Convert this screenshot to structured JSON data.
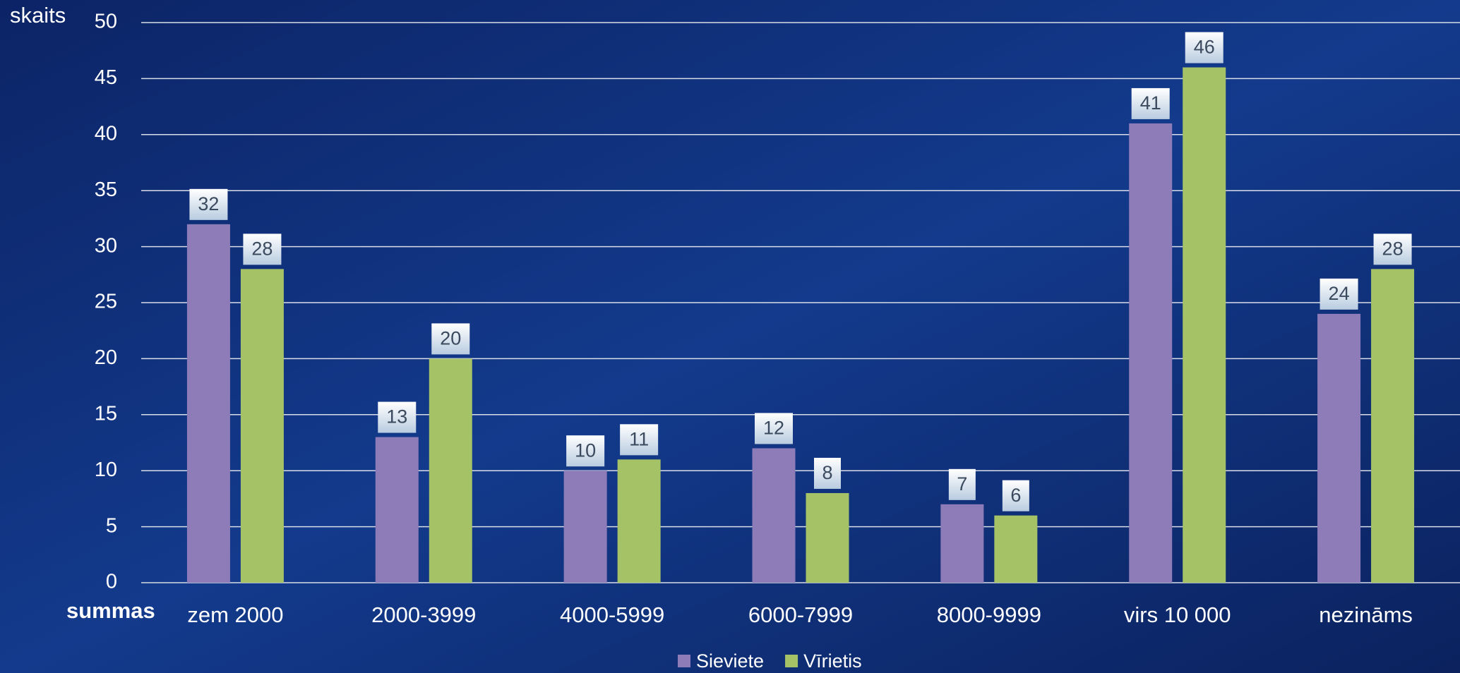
{
  "chart_data": {
    "type": "bar",
    "y_label": "skaits",
    "x_label": "summas",
    "categories": [
      "zem 2000",
      "2000-3999",
      "4000-5999",
      "6000-7999",
      "8000-9999",
      "virs 10 000",
      "nezināms"
    ],
    "series": [
      {
        "name": "Sieviete",
        "color": "#8e7cb8",
        "values": [
          32,
          13,
          10,
          12,
          7,
          41,
          24
        ]
      },
      {
        "name": "Vīrietis",
        "color": "#a5c266",
        "values": [
          28,
          20,
          11,
          8,
          6,
          46,
          28
        ]
      }
    ],
    "ylim": [
      0,
      50
    ],
    "yticks": [
      0,
      5,
      10,
      15,
      20,
      25,
      30,
      35,
      40,
      45,
      50
    ],
    "grid": true,
    "legend": "bottom"
  }
}
